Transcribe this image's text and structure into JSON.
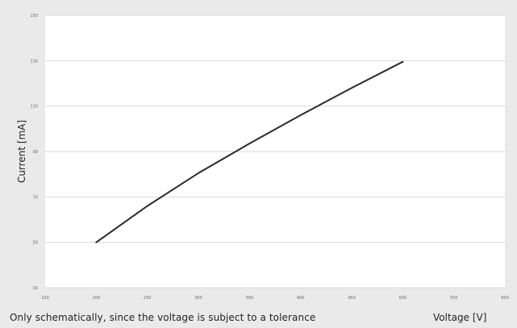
{
  "caption": "Only schematically, since the voltage is subject to a tolerance",
  "chart_data": {
    "type": "line",
    "xlabel": "Voltage [V]",
    "ylabel": "Current [mA]",
    "xlim": [
      150,
      600
    ],
    "ylim": [
      30,
      150
    ],
    "x_ticks": [
      "150",
      "200",
      "250",
      "300",
      "350",
      "400",
      "450",
      "500",
      "550",
      "600"
    ],
    "y_ticks": [
      "30",
      "50",
      "70",
      "90",
      "110",
      "130",
      "150"
    ],
    "grid": true,
    "series": [
      {
        "color": "#2b2b2b",
        "x": [
          200,
          250,
          300,
          350,
          400,
          450,
          500
        ],
        "y": [
          50,
          66,
          80.5,
          93.5,
          106,
          118,
          129.5
        ]
      }
    ]
  }
}
